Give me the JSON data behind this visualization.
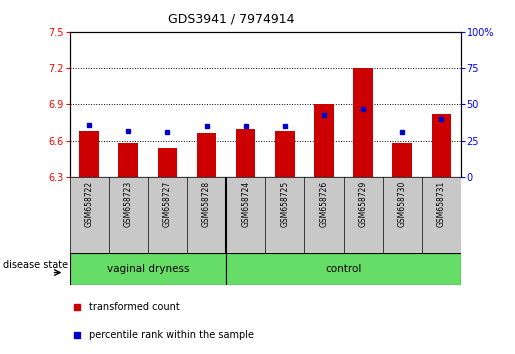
{
  "title": "GDS3941 / 7974914",
  "samples": [
    "GSM658722",
    "GSM658723",
    "GSM658727",
    "GSM658728",
    "GSM658724",
    "GSM658725",
    "GSM658726",
    "GSM658729",
    "GSM658730",
    "GSM658731"
  ],
  "red_values": [
    6.68,
    6.58,
    6.54,
    6.66,
    6.7,
    6.68,
    6.9,
    7.2,
    6.58,
    6.82
  ],
  "blue_values": [
    36,
    32,
    31,
    35,
    35,
    35,
    43,
    47,
    31,
    40
  ],
  "ymin": 6.3,
  "ymax": 7.5,
  "yticks": [
    6.3,
    6.6,
    6.9,
    7.2,
    7.5
  ],
  "right_yticks": [
    0,
    25,
    50,
    75,
    100
  ],
  "group_divider": 4,
  "groups": [
    {
      "label": "vaginal dryness",
      "start": 0,
      "end": 4
    },
    {
      "label": "control",
      "start": 4,
      "end": 10
    }
  ],
  "disease_state_label": "disease state",
  "legend_red": "transformed count",
  "legend_blue": "percentile rank within the sample",
  "bar_color": "#cc0000",
  "blue_color": "#0000cc",
  "green_color": "#66dd66",
  "gray_color": "#c8c8c8",
  "bar_width": 0.5,
  "title_fontsize": 9,
  "label_fontsize": 5.5,
  "tick_fontsize": 7,
  "legend_fontsize": 7,
  "group_fontsize": 7.5,
  "disease_fontsize": 7
}
